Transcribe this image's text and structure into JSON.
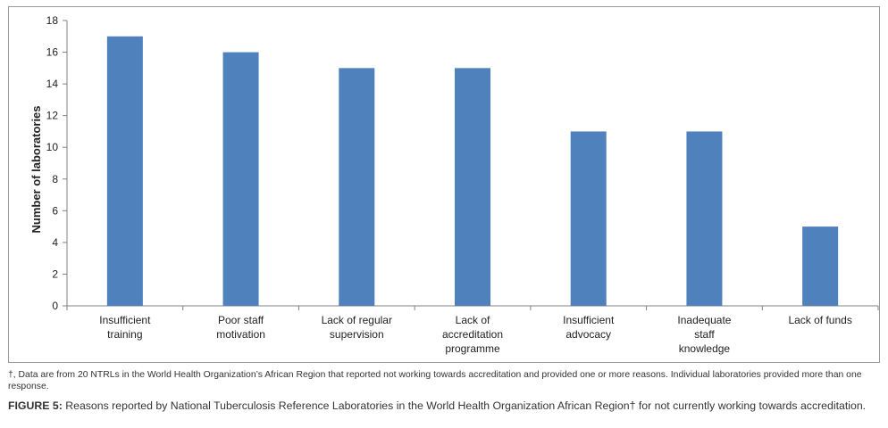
{
  "chart_data": {
    "type": "bar",
    "categories": [
      [
        "Insufficient",
        "training"
      ],
      [
        "Poor staff",
        "motivation"
      ],
      [
        "Lack of regular",
        "supervision"
      ],
      [
        "Lack of",
        "accreditation",
        "programme"
      ],
      [
        "Insufficient",
        "advocacy"
      ],
      [
        "Inadequate",
        "staff",
        "knowledge"
      ],
      [
        "Lack of funds"
      ]
    ],
    "values": [
      17,
      16,
      15,
      15,
      11,
      11,
      5
    ],
    "ylabel": "Number of laboratories",
    "ylim": [
      0,
      18
    ],
    "yticks": [
      0,
      2,
      4,
      6,
      8,
      10,
      12,
      14,
      16,
      18
    ],
    "grid": false,
    "legend": "none",
    "bar_color": "#4f81bd"
  },
  "footnote": "†, Data are from 20 NTRLs in the World Health Organization’s African Region that reported not working towards accreditation and provided one or more reasons. Individual laboratories provided more than one response.",
  "caption": {
    "label": "FIGURE 5:",
    "text": " Reasons reported by National Tuberculosis Reference Laboratories in the World Health Organization African Region† for not currently working towards accreditation."
  }
}
